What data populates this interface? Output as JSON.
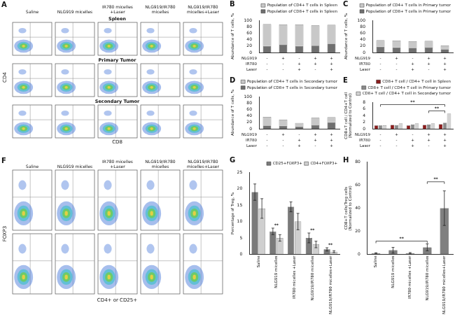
{
  "figure": {
    "A": {
      "panel": "A",
      "columns": [
        "Saline",
        "NLG919 micelles",
        "IR780 micelles +Laser",
        "NLG919/IR780 micelles",
        "NLG919/IR780 micelles+Laser"
      ],
      "rows": [
        "Spleen",
        "Primary Tumor",
        "Secondary Tumor"
      ],
      "x_label": "CD8",
      "y_label": "CD4"
    },
    "F": {
      "panel": "F",
      "columns": [
        "Saline",
        "NLG919 micelles",
        "IR780 micelles +Laser",
        "NLG919/IR780 micelles",
        "NLG919/IR780 micelles+Laser"
      ],
      "x_label": "CD4+ or CD25+",
      "y_label": "FOXP3"
    }
  },
  "chart_data": [
    {
      "panel": "B",
      "type": "bar",
      "stacked": true,
      "grid": false,
      "legend": "upper right",
      "tick_labels": "y",
      "y_label": "Abundance of T cells, %",
      "categories": [
        null,
        null,
        null,
        null,
        null
      ],
      "conditions": [
        {
          "name": "NLG919",
          "marks": [
            "-",
            "+",
            "-",
            "+",
            "+"
          ]
        },
        {
          "name": "IR780",
          "marks": [
            "-",
            "-",
            "+",
            "+",
            "+"
          ]
        },
        {
          "name": "Laser",
          "marks": [
            "-",
            "-",
            "+",
            "-",
            "+"
          ]
        }
      ],
      "series": [
        {
          "name": "Population of CD8+ T cells in Spleen",
          "color": "#6f6f6f",
          "values": [
            20,
            24,
            20,
            21,
            27
          ]
        },
        {
          "name": "Population of CD4+ T cells in Spleen",
          "color": "#c8c8c8",
          "values": [
            68,
            63,
            67,
            63,
            59
          ]
        }
      ],
      "ylim": [
        0,
        100
      ],
      "yticks": [
        0,
        20,
        40,
        60,
        80,
        100
      ]
    },
    {
      "panel": "C",
      "type": "bar",
      "stacked": true,
      "grid": false,
      "legend": "upper right",
      "tick_labels": "y",
      "y_label": "Abundance of T cells, %",
      "categories": [
        null,
        null,
        null,
        null,
        null
      ],
      "conditions": [
        {
          "name": "NLG919",
          "marks": [
            "-",
            "+",
            "-",
            "+",
            "+"
          ]
        },
        {
          "name": "IR780",
          "marks": [
            "-",
            "-",
            "+",
            "+",
            "+"
          ]
        },
        {
          "name": "Laser",
          "marks": [
            "-",
            "-",
            "+",
            "-",
            "+"
          ]
        }
      ],
      "series": [
        {
          "name": "Population of CD8+ T cells in Primary tumor",
          "color": "#6f6f6f",
          "values": [
            18,
            16,
            14,
            15,
            10
          ]
        },
        {
          "name": "Population of CD4+ T cells in Primary tumor",
          "color": "#c8c8c8",
          "values": [
            20,
            21,
            21,
            21,
            12
          ]
        }
      ],
      "ylim": [
        0,
        100
      ],
      "yticks": [
        0,
        20,
        40,
        60,
        80,
        100
      ]
    },
    {
      "panel": "D",
      "type": "bar",
      "stacked": true,
      "grid": false,
      "legend": "upper right",
      "tick_labels": "y",
      "y_label": "Abundance of T cells, %",
      "categories": [
        null,
        null,
        null,
        null,
        null
      ],
      "conditions": [
        {
          "name": "NLG919",
          "marks": [
            "-",
            "+",
            "-",
            "+",
            "+"
          ]
        },
        {
          "name": "IR780",
          "marks": [
            "-",
            "-",
            "+",
            "+",
            "+"
          ]
        },
        {
          "name": "Laser",
          "marks": [
            "-",
            "-",
            "+",
            "-",
            "+"
          ]
        }
      ],
      "series": [
        {
          "name": "Population of CD8+ T cells in Secondary tumor",
          "color": "#6f6f6f",
          "values": [
            10,
            9,
            7,
            11,
            20
          ]
        },
        {
          "name": "Population of CD4+ T cells in Secondary tumor",
          "color": "#c8c8c8",
          "values": [
            27,
            19,
            11,
            23,
            16
          ]
        }
      ],
      "ylim": [
        0,
        100
      ],
      "yticks": [
        0,
        20,
        40,
        60,
        80,
        100
      ]
    },
    {
      "panel": "E",
      "type": "bar",
      "grid": false,
      "legend": "upper right",
      "tick_labels": "y",
      "y_label": [
        "CD8+T cell / CD4+T cell",
        "(Normalized to Control)"
      ],
      "categories": [
        null,
        null,
        null,
        null,
        null
      ],
      "conditions": [
        {
          "name": "NLG919",
          "marks": [
            "-",
            "+",
            "-",
            "+",
            "+"
          ]
        },
        {
          "name": "IR780",
          "marks": [
            "-",
            "-",
            "+",
            "+",
            "+"
          ]
        },
        {
          "name": "Laser",
          "marks": [
            "-",
            "-",
            "+",
            "-",
            "+"
          ]
        }
      ],
      "series": [
        {
          "name": "CD8+ T cell / CD4+ T cell in Spleen",
          "color": "#8b1c1c",
          "values": [
            1,
            1.2,
            1.0,
            1.2,
            1.4
          ]
        },
        {
          "name": "CD8+ T cell / CD4+ T cell in Primary tumor",
          "color": "#8a8a8a",
          "values": [
            1,
            1.1,
            1.3,
            1.3,
            1.8
          ]
        },
        {
          "name": "CD8+ T cell / CD4+ T cell in Secondary tumor",
          "color": "#d3d3d3",
          "values": [
            1,
            1.6,
            1.6,
            1.6,
            4.6
          ]
        }
      ],
      "brackets": [
        {
          "text": "**",
          "from": 3,
          "to": 4
        },
        {
          "text": "**",
          "from": 0,
          "to": 4
        }
      ],
      "ylim": [
        0,
        8
      ],
      "yticks": [
        0,
        2,
        4,
        6,
        8
      ]
    },
    {
      "panel": "G",
      "type": "bar",
      "grid": false,
      "legend": "upper right",
      "y_label": "Percentage of Treg, %",
      "categories": [
        "Saline",
        "NLG919 micelles",
        "IR780 micelles +Laser",
        "NLG919/IR780 micelles",
        "NLG919/IR780 micelles+Laser"
      ],
      "series": [
        {
          "name": "CD25+FOXP3+",
          "color": "#7a7a7a",
          "values": [
            19,
            7,
            14.5,
            5,
            1.5
          ],
          "errors": [
            2.5,
            1,
            1.5,
            1.5,
            0.5
          ]
        },
        {
          "name": "CD4+FOXP3+",
          "color": "#cfcfcf",
          "values": [
            14,
            5,
            10,
            3,
            0.8
          ],
          "errors": [
            3,
            1,
            2.5,
            1,
            0.3
          ]
        }
      ],
      "markers": [
        {
          "text": "**",
          "category": 1
        },
        {
          "text": "**",
          "category": 3
        },
        {
          "text": "**",
          "category": 4
        }
      ],
      "ylim": [
        0,
        25
      ],
      "yticks": [
        0,
        5,
        10,
        15,
        20,
        25
      ]
    },
    {
      "panel": "H",
      "type": "bar",
      "grid": false,
      "y_label": [
        "CD8+T cells/Treg cells",
        "(Normalized to Control)"
      ],
      "categories": [
        "Saline",
        "NLG919 micelles",
        "IR780 micelles +Laser",
        "NLG919/IR780 micelles",
        "NLG919/IR780 micelles+Laser"
      ],
      "series": [
        {
          "name": "CD8+T cells/Treg cells",
          "color": "#808080",
          "values": [
            1,
            3.5,
            1,
            6,
            40
          ],
          "errors": [
            0.3,
            2.5,
            0.5,
            3,
            15
          ]
        }
      ],
      "brackets": [
        {
          "text": "**",
          "from": 0,
          "to": 3
        },
        {
          "text": "**",
          "from": 3,
          "to": 4
        }
      ],
      "ylim": [
        0,
        80
      ],
      "yticks": [
        0,
        20,
        40,
        60,
        80
      ]
    }
  ]
}
